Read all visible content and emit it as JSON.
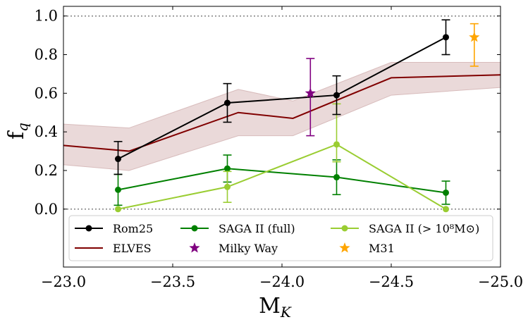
{
  "chart_data": {
    "type": "line",
    "xlabel": "M",
    "xlabel_sub": "K",
    "ylabel": "f",
    "ylabel_sub": "q",
    "xlim": [
      -23.0,
      -25.0
    ],
    "ylim": [
      -0.3,
      1.05
    ],
    "xticks": [
      -23.0,
      -23.5,
      -24.0,
      -24.5,
      -25.0
    ],
    "xtick_labels": [
      "−23.0",
      "−23.5",
      "−24.0",
      "−24.5",
      "−25.0"
    ],
    "yticks": [
      0.0,
      0.2,
      0.4,
      0.6,
      0.8,
      1.0
    ],
    "ytick_labels": [
      "0.0",
      "0.2",
      "0.4",
      "0.6",
      "0.8",
      "1.0"
    ],
    "reference_lines": [
      0.0,
      1.0
    ],
    "legend_position": "lower-center",
    "elves_band": {
      "x": [
        -23.0,
        -23.3,
        -23.8,
        -24.05,
        -24.5,
        -25.0
      ],
      "lower": [
        0.23,
        0.2,
        0.38,
        0.38,
        0.59,
        0.63
      ],
      "upper": [
        0.44,
        0.42,
        0.62,
        0.56,
        0.76,
        0.76
      ],
      "color": "#e6d2d2"
    },
    "series": [
      {
        "name": "Rom25",
        "color": "#000000",
        "marker": "circle",
        "line": true,
        "x": [
          -23.25,
          -23.75,
          -24.25,
          -24.75
        ],
        "y": [
          0.26,
          0.55,
          0.59,
          0.89
        ],
        "err_low": [
          0.08,
          0.1,
          0.1,
          0.09
        ],
        "err_high": [
          0.09,
          0.1,
          0.1,
          0.09
        ]
      },
      {
        "name": "ELVES",
        "color": "#800000",
        "marker": "none",
        "line": true,
        "x": [
          -23.0,
          -23.3,
          -23.8,
          -24.05,
          -24.5,
          -25.0
        ],
        "y": [
          0.33,
          0.3,
          0.5,
          0.47,
          0.68,
          0.695
        ]
      },
      {
        "name": "SAGA II (full)",
        "color": "#008000",
        "marker": "circle",
        "line": true,
        "x": [
          -23.25,
          -23.75,
          -24.25,
          -24.75
        ],
        "y": [
          0.1,
          0.21,
          0.165,
          0.085
        ],
        "err_low": [
          0.08,
          0.07,
          0.09,
          0.06
        ],
        "err_high": [
          0.08,
          0.07,
          0.09,
          0.06
        ]
      },
      {
        "name": "Milky Way",
        "color": "#800080",
        "marker": "star",
        "line": false,
        "x": [
          -24.13
        ],
        "y": [
          0.6
        ],
        "err_low": [
          0.22
        ],
        "err_high": [
          0.18
        ]
      },
      {
        "name": "SAGA II (> 10⁸M⊙)",
        "color": "#9acd32",
        "marker": "circle",
        "line": true,
        "x": [
          -23.25,
          -23.75,
          -24.25,
          -24.75
        ],
        "y": [
          0.0,
          0.115,
          0.335,
          0.0
        ],
        "err_low": [
          0.0,
          0.08,
          0.09,
          0.0
        ],
        "err_high": [
          0.0,
          0.08,
          0.21,
          0.0
        ]
      },
      {
        "name": "M31",
        "color": "#ffa500",
        "marker": "star",
        "line": false,
        "x": [
          -24.88
        ],
        "y": [
          0.89
        ],
        "err_low": [
          0.15
        ],
        "err_high": [
          0.07
        ]
      }
    ]
  }
}
